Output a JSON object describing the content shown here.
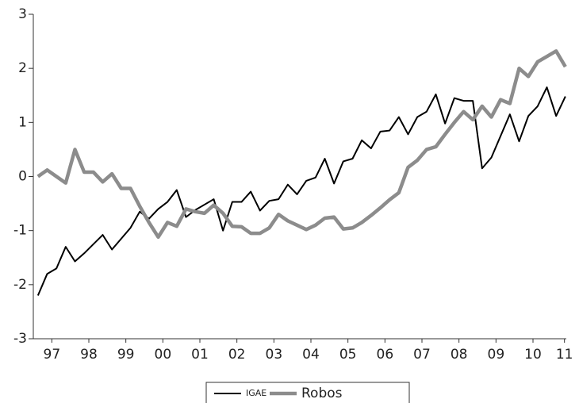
{
  "chart_data": {
    "type": "line",
    "x": [
      1997.125,
      1997.375,
      1997.625,
      1997.875,
      1998.125,
      1998.375,
      1998.625,
      1998.875,
      1999.125,
      1999.375,
      1999.625,
      1999.875,
      2000.125,
      2000.375,
      2000.625,
      2000.875,
      2001.125,
      2001.375,
      2001.625,
      2001.875,
      2002.125,
      2002.375,
      2002.625,
      2002.875,
      2003.125,
      2003.375,
      2003.625,
      2003.875,
      2004.125,
      2004.375,
      2004.625,
      2004.875,
      2005.125,
      2005.375,
      2005.625,
      2005.875,
      2006.125,
      2006.375,
      2006.625,
      2006.875,
      2007.125,
      2007.375,
      2007.625,
      2007.875,
      2008.125,
      2008.375,
      2008.625,
      2008.875,
      2009.125,
      2009.375,
      2009.625,
      2009.875,
      2010.125,
      2010.375,
      2010.625,
      2010.875,
      2011.125,
      2011.375
    ],
    "series": [
      {
        "name": "IGAE",
        "color": "#000000",
        "values": [
          -2.2,
          -1.8,
          -1.7,
          -1.3,
          -1.57,
          -1.42,
          -1.25,
          -1.08,
          -1.35,
          -1.15,
          -0.95,
          -0.65,
          -0.78,
          -0.6,
          -0.47,
          -0.25,
          -0.75,
          -0.62,
          -0.52,
          -0.42,
          -1.0,
          -0.47,
          -0.47,
          -0.28,
          -0.63,
          -0.45,
          -0.42,
          -0.15,
          -0.33,
          -0.08,
          -0.02,
          0.33,
          -0.13,
          0.28,
          0.33,
          0.67,
          0.52,
          0.83,
          0.85,
          1.1,
          0.78,
          1.1,
          1.2,
          1.52,
          0.98,
          1.45,
          1.4,
          1.4,
          0.15,
          0.35,
          0.75,
          1.15,
          0.65,
          1.12,
          1.3,
          1.65,
          1.12,
          1.48
        ]
      },
      {
        "name": "Robos",
        "color": "#8c8c8c",
        "values": [
          0.0,
          0.12,
          0.0,
          -0.12,
          0.5,
          0.08,
          0.08,
          -0.1,
          0.05,
          -0.22,
          -0.22,
          -0.55,
          -0.85,
          -1.12,
          -0.85,
          -0.92,
          -0.6,
          -0.65,
          -0.68,
          -0.53,
          -0.68,
          -0.92,
          -0.93,
          -1.05,
          -1.05,
          -0.95,
          -0.7,
          -0.82,
          -0.9,
          -0.98,
          -0.9,
          -0.77,
          -0.75,
          -0.97,
          -0.95,
          -0.85,
          -0.72,
          -0.58,
          -0.43,
          -0.3,
          0.17,
          0.3,
          0.5,
          0.55,
          0.78,
          1.0,
          1.2,
          1.05,
          1.3,
          1.1,
          1.42,
          1.35,
          2.0,
          1.85,
          2.12,
          2.22,
          2.32,
          2.03
        ]
      }
    ],
    "xlim": [
      1997,
      2011.4
    ],
    "xticks": [
      {
        "value": 1997.5,
        "label": "97"
      },
      {
        "value": 1998.5,
        "label": "98"
      },
      {
        "value": 1999.5,
        "label": "99"
      },
      {
        "value": 2000.5,
        "label": "00"
      },
      {
        "value": 2001.5,
        "label": "01"
      },
      {
        "value": 2002.5,
        "label": "02"
      },
      {
        "value": 2003.5,
        "label": "03"
      },
      {
        "value": 2004.5,
        "label": "04"
      },
      {
        "value": 2005.5,
        "label": "05"
      },
      {
        "value": 2006.5,
        "label": "06"
      },
      {
        "value": 2007.5,
        "label": "07"
      },
      {
        "value": 2008.5,
        "label": "08"
      },
      {
        "value": 2009.5,
        "label": "09"
      },
      {
        "value": 2010.5,
        "label": "10"
      },
      {
        "value": 2011.35,
        "label": "11"
      }
    ],
    "ylim": [
      -3,
      3
    ],
    "yticks": [
      -3,
      -2,
      -1,
      0,
      1,
      2,
      3
    ],
    "grid": false
  }
}
